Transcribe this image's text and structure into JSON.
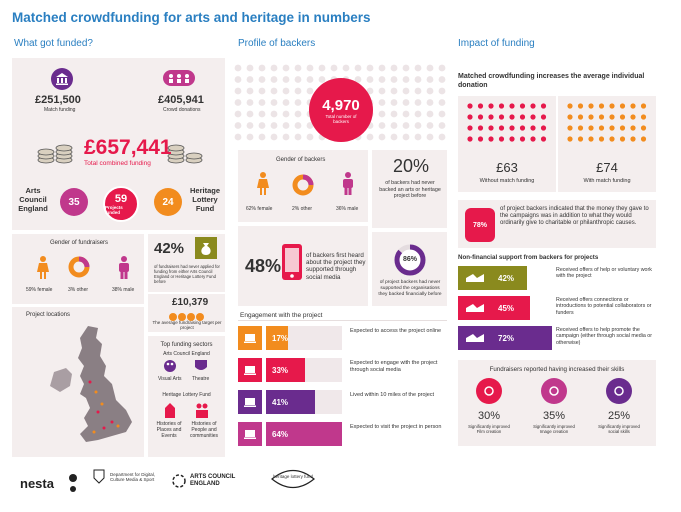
{
  "title": "Matched crowdfunding for arts and heritage in numbers",
  "sections": {
    "funded": "What got funded?",
    "backers": "Profile of backers",
    "impact": "Impact of funding"
  },
  "funded": {
    "match_amount": "£251,500",
    "match_label": "Match funding",
    "crowd_amount": "£405,941",
    "crowd_label": "Crowd donations",
    "total_amount": "£657,441",
    "total_label": "Total combined funding",
    "ace_label": "Arts Council England",
    "ace_count": "35",
    "projects_count": "59",
    "projects_label": "Projects funded",
    "hlf_count": "24",
    "hlf_label": "Heritage Lottery Fund",
    "gender_title": "Gender of fundraisers",
    "female": "59% female",
    "other": "3% other",
    "male": "38% male",
    "applied_pct": "42%",
    "applied_text": "of fundraisers had never applied for funding from either Arts Council England or Heritage Lottery Fund before",
    "avg_target": "£10,379",
    "avg_target_label": "The average fundraising target per project",
    "locations_title": "Project locations",
    "sectors_title": "Top funding sectors",
    "sectors_ace": "Arts Council England",
    "visual_arts": "Visual Arts",
    "theatre": "Theatre",
    "sectors_hlf": "Heritage Lottery Fund",
    "histories_places": "Histories of Places and Events",
    "histories_people": "Histories of People and communities"
  },
  "backers": {
    "total": "4,970",
    "total_label": "Total number of backers",
    "gender_title": "Gender of backers",
    "female": "62% female",
    "other": "2% other",
    "male": "36% male",
    "never_backed_pct": "20%",
    "never_backed_text": "of backers had never backed an arts or heritage project before",
    "social_pct": "48%",
    "social_text": "of backers first heard about the project they supported through social media",
    "never_supported_pct": "86%",
    "never_supported_text": "of project backers had never supported the organisations they backed financially before",
    "engagement_title": "Engagement with the project",
    "engagement": [
      {
        "pct": "17%",
        "text": "Expected to access the project online",
        "fill": 0.17,
        "color": "#f28c1e"
      },
      {
        "pct": "33%",
        "text": "Expected to engage with the project through social media",
        "fill": 0.33,
        "color": "#e6194b"
      },
      {
        "pct": "41%",
        "text": "Lived within 10 miles of the project",
        "fill": 0.41,
        "color": "#6a2c8e"
      },
      {
        "pct": "64%",
        "text": "Expected to visit the project in person",
        "fill": 0.64,
        "color": "#c0388c"
      }
    ]
  },
  "impact": {
    "donation_title": "Matched crowdfunding increases the average individual donation",
    "without_amount": "£63",
    "without_label": "Without match funding",
    "with_amount": "£74",
    "with_label": "With match funding",
    "charitable_pct": "78%",
    "charitable_text": "of project backers indicated that the money they gave to the campaigns was in addition to what they would ordinarily give to charitable or philanthropic causes.",
    "nonfin_title": "Non-financial support from backers for projects",
    "nonfin": [
      {
        "pct": "42%",
        "text": "Received offers of help or voluntary work with the project",
        "fill": 0.42,
        "color": "#8a8a1e"
      },
      {
        "pct": "45%",
        "text": "Received offers connections or introductions to potential collaborators or funders",
        "fill": 0.45,
        "color": "#e6194b"
      },
      {
        "pct": "72%",
        "text": "Received offers to help promote the campaign (either through social media or otherwise)",
        "fill": 0.72,
        "color": "#6a2c8e"
      }
    ],
    "skills_title": "Fundraisers reported having increased their skills",
    "skills": [
      {
        "pct": "30%",
        "text": "Significantly improved Film creation",
        "color": "#e6194b"
      },
      {
        "pct": "35%",
        "text": "Significantly improved Image creation",
        "color": "#c0388c"
      },
      {
        "pct": "25%",
        "text": "Significantly improved social skills",
        "color": "#6a2c8e"
      }
    ]
  },
  "logos": {
    "nesta": "nesta",
    "dcms": "Department for Digital, Culture Media & Sport",
    "ace": "ARTS COUNCIL ENGLAND",
    "hlf": "heritage lottery fund"
  }
}
